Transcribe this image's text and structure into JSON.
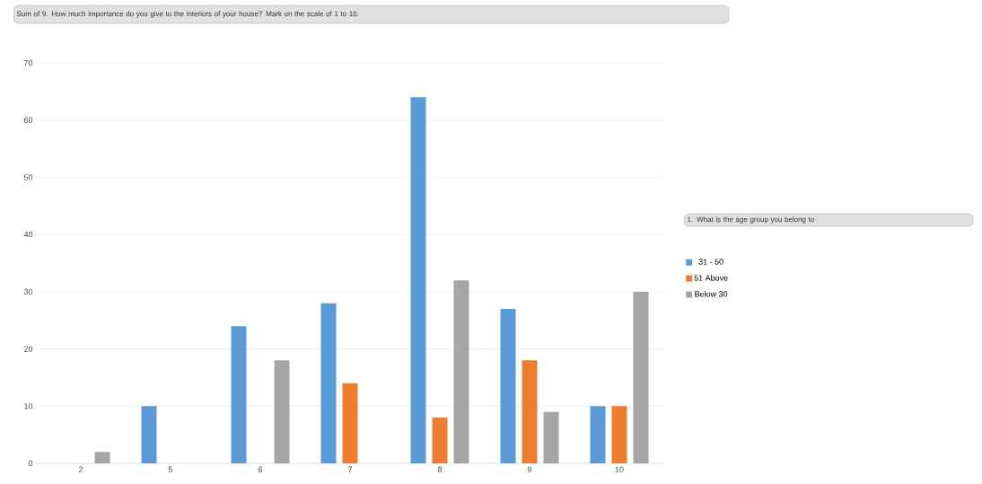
{
  "chart_data": {
    "type": "bar",
    "title": "Sum of 9. How much importance do you give to the interiors of your house? Mark on the scale of 1 to 10.",
    "legend_title": "1. What is the age group you belong to",
    "categories": [
      "2",
      "5",
      "6",
      "7",
      "8",
      "9",
      "10"
    ],
    "series": [
      {
        "name": "31 - 50",
        "color": "#5b9bd5",
        "values": [
          null,
          10,
          24,
          28,
          64,
          27,
          10
        ]
      },
      {
        "name": "51 Above",
        "color": "#ed7d31",
        "values": [
          null,
          null,
          null,
          14,
          8,
          18,
          10
        ]
      },
      {
        "name": "Below 30",
        "color": "#a5a5a5",
        "values": [
          2,
          null,
          18,
          null,
          32,
          9,
          30
        ]
      }
    ],
    "ylim": [
      0,
      70
    ],
    "yticks": [
      0,
      10,
      20,
      30,
      40,
      50,
      60,
      70
    ],
    "grid": "y",
    "legend": "right"
  }
}
